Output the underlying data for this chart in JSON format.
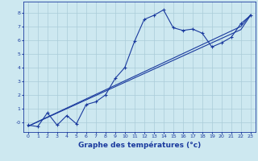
{
  "xlabel": "Graphe des températures (°c)",
  "background_color": "#cde8f0",
  "line_color": "#1a3a9e",
  "grid_color": "#aaccd8",
  "x_hours": [
    0,
    1,
    2,
    3,
    4,
    5,
    6,
    7,
    8,
    9,
    10,
    11,
    12,
    13,
    14,
    15,
    16,
    17,
    18,
    19,
    20,
    21,
    22,
    23
  ],
  "temp_values": [
    -0.2,
    -0.3,
    0.7,
    -0.2,
    0.5,
    -0.1,
    1.3,
    1.5,
    2.0,
    3.2,
    4.0,
    5.9,
    7.5,
    7.8,
    8.2,
    6.9,
    6.7,
    6.8,
    6.5,
    5.5,
    5.8,
    6.2,
    7.2,
    7.8
  ],
  "trend1": [
    -0.28,
    0.06,
    0.39,
    0.72,
    1.05,
    1.38,
    1.71,
    2.04,
    2.37,
    2.7,
    3.03,
    3.36,
    3.69,
    4.02,
    4.35,
    4.68,
    5.01,
    5.34,
    5.67,
    6.0,
    6.33,
    6.66,
    6.99,
    7.85
  ],
  "trend2": [
    -0.28,
    0.04,
    0.36,
    0.68,
    1.0,
    1.32,
    1.64,
    1.96,
    2.28,
    2.6,
    2.92,
    3.24,
    3.56,
    3.88,
    4.2,
    4.52,
    4.84,
    5.16,
    5.48,
    5.8,
    6.12,
    6.44,
    6.76,
    7.8
  ],
  "ylim": [
    -0.7,
    8.8
  ],
  "xlim": [
    -0.5,
    23.5
  ],
  "yticks": [
    0,
    1,
    2,
    3,
    4,
    5,
    6,
    7,
    8
  ],
  "ytick_labels": [
    "-0",
    "1",
    "2",
    "3",
    "4",
    "5",
    "6",
    "7",
    "8"
  ],
  "xticks": [
    0,
    1,
    2,
    3,
    4,
    5,
    6,
    7,
    8,
    9,
    10,
    11,
    12,
    13,
    14,
    15,
    16,
    17,
    18,
    19,
    20,
    21,
    22,
    23
  ],
  "tick_fontsize": 4.5,
  "xlabel_fontsize": 6.5
}
